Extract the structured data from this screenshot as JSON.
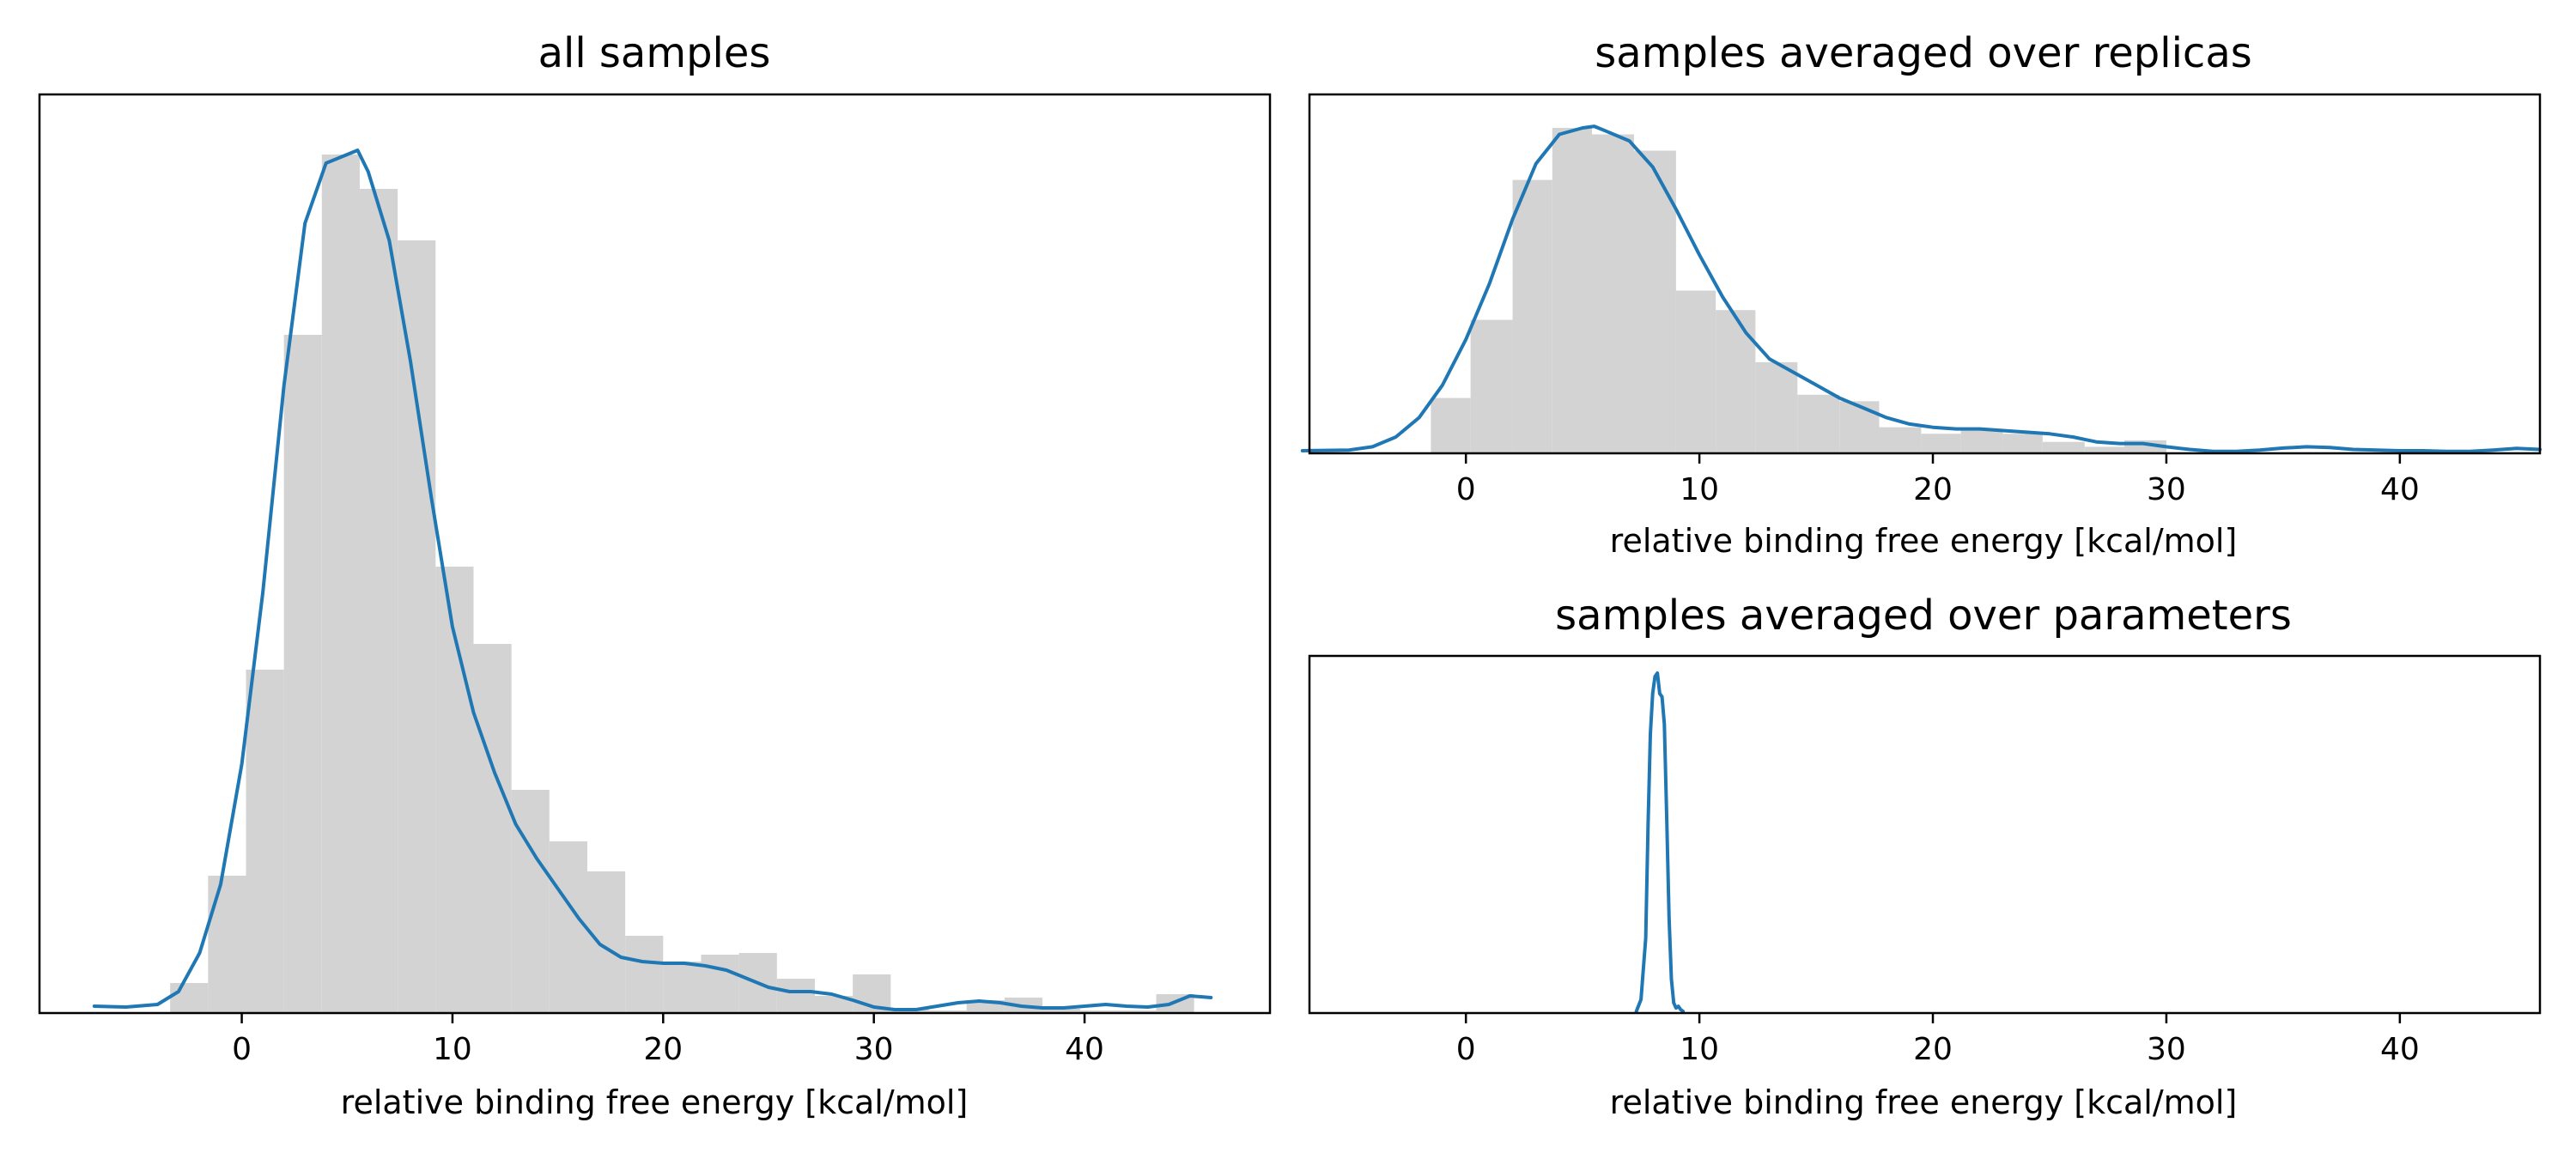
{
  "colors": {
    "histogram": "#d3d3d3",
    "kde_line": "#1f77b4",
    "axes": "#000000",
    "background": "#ffffff"
  },
  "chart_data": [
    {
      "id": "all",
      "type": "bar",
      "overlay": "kde-line",
      "title": "all samples",
      "xlabel": "relative binding free energy [kcal/mol]",
      "ylabel": "",
      "y_ticks_shown": false,
      "grid": false,
      "legend": "none",
      "xlim": [
        -9.6,
        48.8
      ],
      "ylim": [
        0,
        1.05
      ],
      "x_ticks": [
        0,
        10,
        20,
        30,
        40
      ],
      "x_tick_labels": [
        "0",
        "10",
        "20",
        "30",
        "40"
      ],
      "hist": {
        "bin_edges": [
          -3.4,
          -1.6,
          0.2,
          2.0,
          3.8,
          5.6,
          7.4,
          9.2,
          11.0,
          12.8,
          14.6,
          16.4,
          18.2,
          20.0,
          21.8,
          23.6,
          25.4,
          27.2,
          29.0,
          30.8,
          32.6,
          34.4,
          36.2,
          38.0,
          39.8,
          41.6,
          43.4,
          45.2
        ],
        "values": [
          0.035,
          0.16,
          0.4,
          0.79,
          1.0,
          0.96,
          0.9,
          0.52,
          0.43,
          0.26,
          0.2,
          0.165,
          0.09,
          0.06,
          0.068,
          0.07,
          0.04,
          0.02,
          0.045,
          0.005,
          0.003,
          0.015,
          0.018,
          0.005,
          0.003,
          0.003,
          0.022
        ]
      },
      "kde": {
        "x": [
          -7,
          -5.5,
          -4,
          -3,
          -2,
          -1,
          0,
          1,
          2,
          3,
          4,
          5,
          5.5,
          6,
          7,
          8,
          9,
          10,
          11,
          12,
          13,
          14,
          15,
          16,
          17,
          18,
          19,
          20,
          21,
          22,
          23,
          24,
          25,
          26,
          27,
          28,
          29,
          30,
          31,
          32,
          33,
          34,
          35,
          36,
          37,
          38,
          39,
          40,
          41,
          42,
          43,
          44,
          45,
          46
        ],
        "y": [
          0.008,
          0.007,
          0.01,
          0.025,
          0.07,
          0.15,
          0.29,
          0.49,
          0.73,
          0.92,
          0.99,
          1.0,
          1.005,
          0.98,
          0.9,
          0.76,
          0.6,
          0.45,
          0.35,
          0.28,
          0.22,
          0.18,
          0.145,
          0.11,
          0.08,
          0.065,
          0.06,
          0.058,
          0.058,
          0.055,
          0.05,
          0.04,
          0.03,
          0.025,
          0.025,
          0.022,
          0.015,
          0.007,
          0.004,
          0.004,
          0.008,
          0.012,
          0.014,
          0.012,
          0.008,
          0.006,
          0.006,
          0.008,
          0.01,
          0.008,
          0.007,
          0.01,
          0.02,
          0.018
        ]
      }
    },
    {
      "id": "replicas",
      "type": "bar",
      "overlay": "kde-line",
      "title": "samples averaged over replicas",
      "xlabel": "relative binding free energy [kcal/mol]",
      "ylabel": "",
      "y_ticks_shown": false,
      "grid": false,
      "legend": "none",
      "xlim": [
        -6.7,
        46.0
      ],
      "ylim": [
        0,
        1.05
      ],
      "x_ticks": [
        0,
        10,
        20,
        30,
        40
      ],
      "x_tick_labels": [
        "0",
        "10",
        "20",
        "30",
        "40"
      ],
      "hist": {
        "bin_edges": [
          -1.5,
          0.2,
          2.0,
          3.7,
          5.4,
          7.2,
          9.0,
          10.7,
          12.4,
          14.2,
          16.0,
          17.7,
          19.5,
          21.2,
          23.0,
          24.7,
          26.5,
          28.2,
          30.0
        ],
        "values": [
          0.17,
          0.41,
          0.84,
          1.0,
          0.98,
          0.93,
          0.5,
          0.44,
          0.28,
          0.18,
          0.16,
          0.08,
          0.06,
          0.07,
          0.06,
          0.035,
          0.02,
          0.04
        ]
      },
      "kde": {
        "x": [
          -7,
          -5,
          -4,
          -3,
          -2,
          -1,
          0,
          1,
          2,
          3,
          4,
          5,
          5.5,
          6,
          7,
          8,
          9,
          10,
          11,
          12,
          13,
          14,
          15,
          16,
          17,
          18,
          19,
          20,
          21,
          22,
          23,
          24,
          25,
          26,
          27,
          28,
          29,
          30,
          31,
          32,
          33,
          34,
          35,
          36,
          37,
          38,
          39,
          40,
          41,
          42,
          43,
          44,
          45,
          46
        ],
        "y": [
          0.008,
          0.01,
          0.02,
          0.05,
          0.11,
          0.21,
          0.35,
          0.52,
          0.72,
          0.89,
          0.98,
          1.0,
          1.005,
          0.99,
          0.96,
          0.88,
          0.75,
          0.61,
          0.48,
          0.37,
          0.29,
          0.25,
          0.21,
          0.17,
          0.14,
          0.11,
          0.09,
          0.08,
          0.075,
          0.075,
          0.07,
          0.065,
          0.06,
          0.05,
          0.035,
          0.03,
          0.03,
          0.02,
          0.012,
          0.006,
          0.006,
          0.01,
          0.016,
          0.02,
          0.018,
          0.012,
          0.01,
          0.008,
          0.008,
          0.006,
          0.006,
          0.01,
          0.015,
          0.012
        ]
      }
    },
    {
      "id": "parameters",
      "type": "line",
      "title": "samples averaged over parameters",
      "xlabel": "relative binding free energy [kcal/mol]",
      "ylabel": "",
      "y_ticks_shown": false,
      "grid": false,
      "legend": "none",
      "xlim": [
        -6.7,
        46.0
      ],
      "ylim": [
        0,
        1.0
      ],
      "x_ticks": [
        0,
        10,
        20,
        30,
        40
      ],
      "x_tick_labels": [
        "0",
        "10",
        "20",
        "30",
        "40"
      ],
      "kde": {
        "x": [
          7.3,
          7.5,
          7.7,
          7.8,
          7.9,
          8.0,
          8.1,
          8.2,
          8.3,
          8.4,
          8.5,
          8.6,
          8.7,
          8.8,
          8.9,
          9.0,
          9.1,
          9.2,
          9.3
        ],
        "y": [
          0.005,
          0.04,
          0.22,
          0.55,
          0.82,
          0.94,
          0.99,
          1.0,
          0.94,
          0.93,
          0.85,
          0.58,
          0.28,
          0.1,
          0.03,
          0.015,
          0.02,
          0.01,
          0.005
        ]
      }
    }
  ]
}
